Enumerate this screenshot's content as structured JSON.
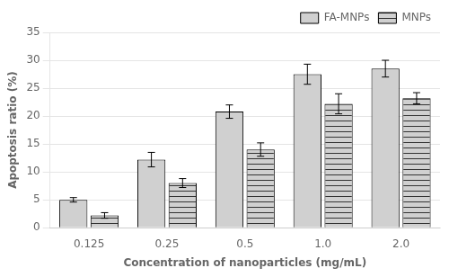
{
  "chart_data": {
    "type": "bar",
    "xlabel": "Concentration of nanoparticles (mg/mL)",
    "ylabel": "Apoptosis ratio (%)",
    "categories": [
      "0.125",
      "0.25",
      "0.5",
      "1.0",
      "2.0"
    ],
    "series": [
      {
        "name": "FA-MNPs",
        "color": "#d0d0d0",
        "values": [
          5.0,
          12.2,
          20.8,
          27.5,
          28.5
        ],
        "errors": [
          0.4,
          1.3,
          1.2,
          1.8,
          1.5
        ]
      },
      {
        "name": "MNPs",
        "color": "#d0d0d0",
        "values": [
          2.2,
          8.0,
          14.0,
          22.2,
          23.2
        ],
        "errors": [
          0.5,
          0.8,
          1.2,
          1.8,
          1.0
        ]
      }
    ],
    "ylim": [
      0,
      35
    ],
    "yticks": [
      0,
      5,
      10,
      15,
      20,
      25,
      30,
      35
    ],
    "grid": true,
    "legend": "upper right"
  }
}
